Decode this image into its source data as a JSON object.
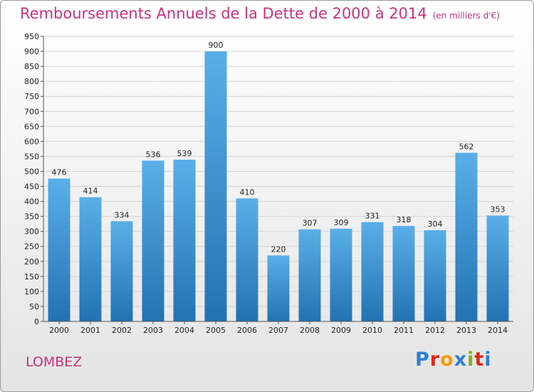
{
  "header": {
    "title": "Remboursements Annuels de la Dette de 2000 à 2014",
    "subtitle": "(en milliers d'€)"
  },
  "footer": {
    "commune": "LOMBEZ",
    "logo": "Proxiti",
    "logo_colors": [
      "#2f7fd0",
      "#e2261c",
      "#f49b12",
      "#2f7fd0",
      "#7cb31d",
      "#e2261c",
      "#2f7fd0"
    ]
  },
  "colors": {
    "bar_light": "#5aafe8",
    "bar_dark": "#2272b2",
    "accent": "#c8337e"
  },
  "chart_data": {
    "type": "bar",
    "categories": [
      "2000",
      "2001",
      "2002",
      "2003",
      "2004",
      "2005",
      "2006",
      "2007",
      "2008",
      "2009",
      "2010",
      "2011",
      "2012",
      "2013",
      "2014"
    ],
    "values": [
      476,
      414,
      334,
      536,
      539,
      900,
      410,
      220,
      307,
      309,
      331,
      318,
      304,
      562,
      353
    ],
    "ylim": [
      0,
      950
    ],
    "ytick_step": 50,
    "grid": true
  }
}
